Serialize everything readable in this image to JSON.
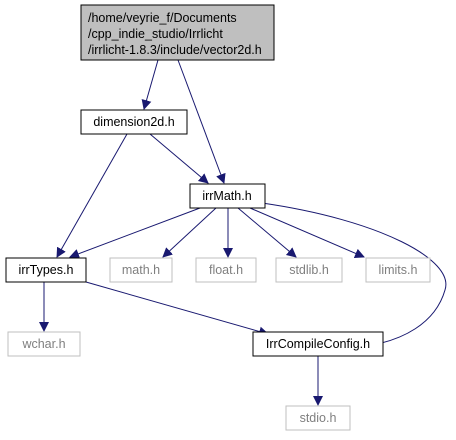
{
  "diagram": {
    "root": {
      "id": "vector2d",
      "lines": [
        "/home/veyrie_f/Documents",
        "/cpp_indie_studio/Irrlicht",
        "/irrlicht-1.8.3/include/vector2d.h"
      ],
      "fill": "#bfbfbf",
      "border": "#000000"
    },
    "nodes": [
      {
        "id": "dimension2d",
        "label": "dimension2d.h",
        "documented": true
      },
      {
        "id": "irrMath",
        "label": "irrMath.h",
        "documented": true
      },
      {
        "id": "irrTypes",
        "label": "irrTypes.h",
        "documented": true
      },
      {
        "id": "math",
        "label": "math.h",
        "documented": false
      },
      {
        "id": "float",
        "label": "float.h",
        "documented": false
      },
      {
        "id": "stdlib",
        "label": "stdlib.h",
        "documented": false
      },
      {
        "id": "limits",
        "label": "limits.h",
        "documented": false
      },
      {
        "id": "wchar",
        "label": "wchar.h",
        "documented": false
      },
      {
        "id": "IrrCompileConfig",
        "label": "IrrCompileConfig.h",
        "documented": true
      },
      {
        "id": "stdio",
        "label": "stdio.h",
        "documented": false
      }
    ],
    "edges": [
      {
        "from": "vector2d",
        "to": "dimension2d"
      },
      {
        "from": "vector2d",
        "to": "irrMath"
      },
      {
        "from": "dimension2d",
        "to": "irrMath"
      },
      {
        "from": "dimension2d",
        "to": "irrTypes"
      },
      {
        "from": "irrMath",
        "to": "irrTypes"
      },
      {
        "from": "irrMath",
        "to": "math"
      },
      {
        "from": "irrMath",
        "to": "float"
      },
      {
        "from": "irrMath",
        "to": "stdlib"
      },
      {
        "from": "irrMath",
        "to": "limits"
      },
      {
        "from": "irrMath",
        "to": "IrrCompileConfig"
      },
      {
        "from": "irrTypes",
        "to": "wchar"
      },
      {
        "from": "irrTypes",
        "to": "IrrCompileConfig"
      },
      {
        "from": "IrrCompileConfig",
        "to": "stdio"
      }
    ],
    "colors": {
      "edge": "#191970",
      "documented_border": "#000000",
      "undocumented_border": "#bfbfbf",
      "undocumented_text": "#7f7f7f",
      "text": "#000000"
    }
  }
}
